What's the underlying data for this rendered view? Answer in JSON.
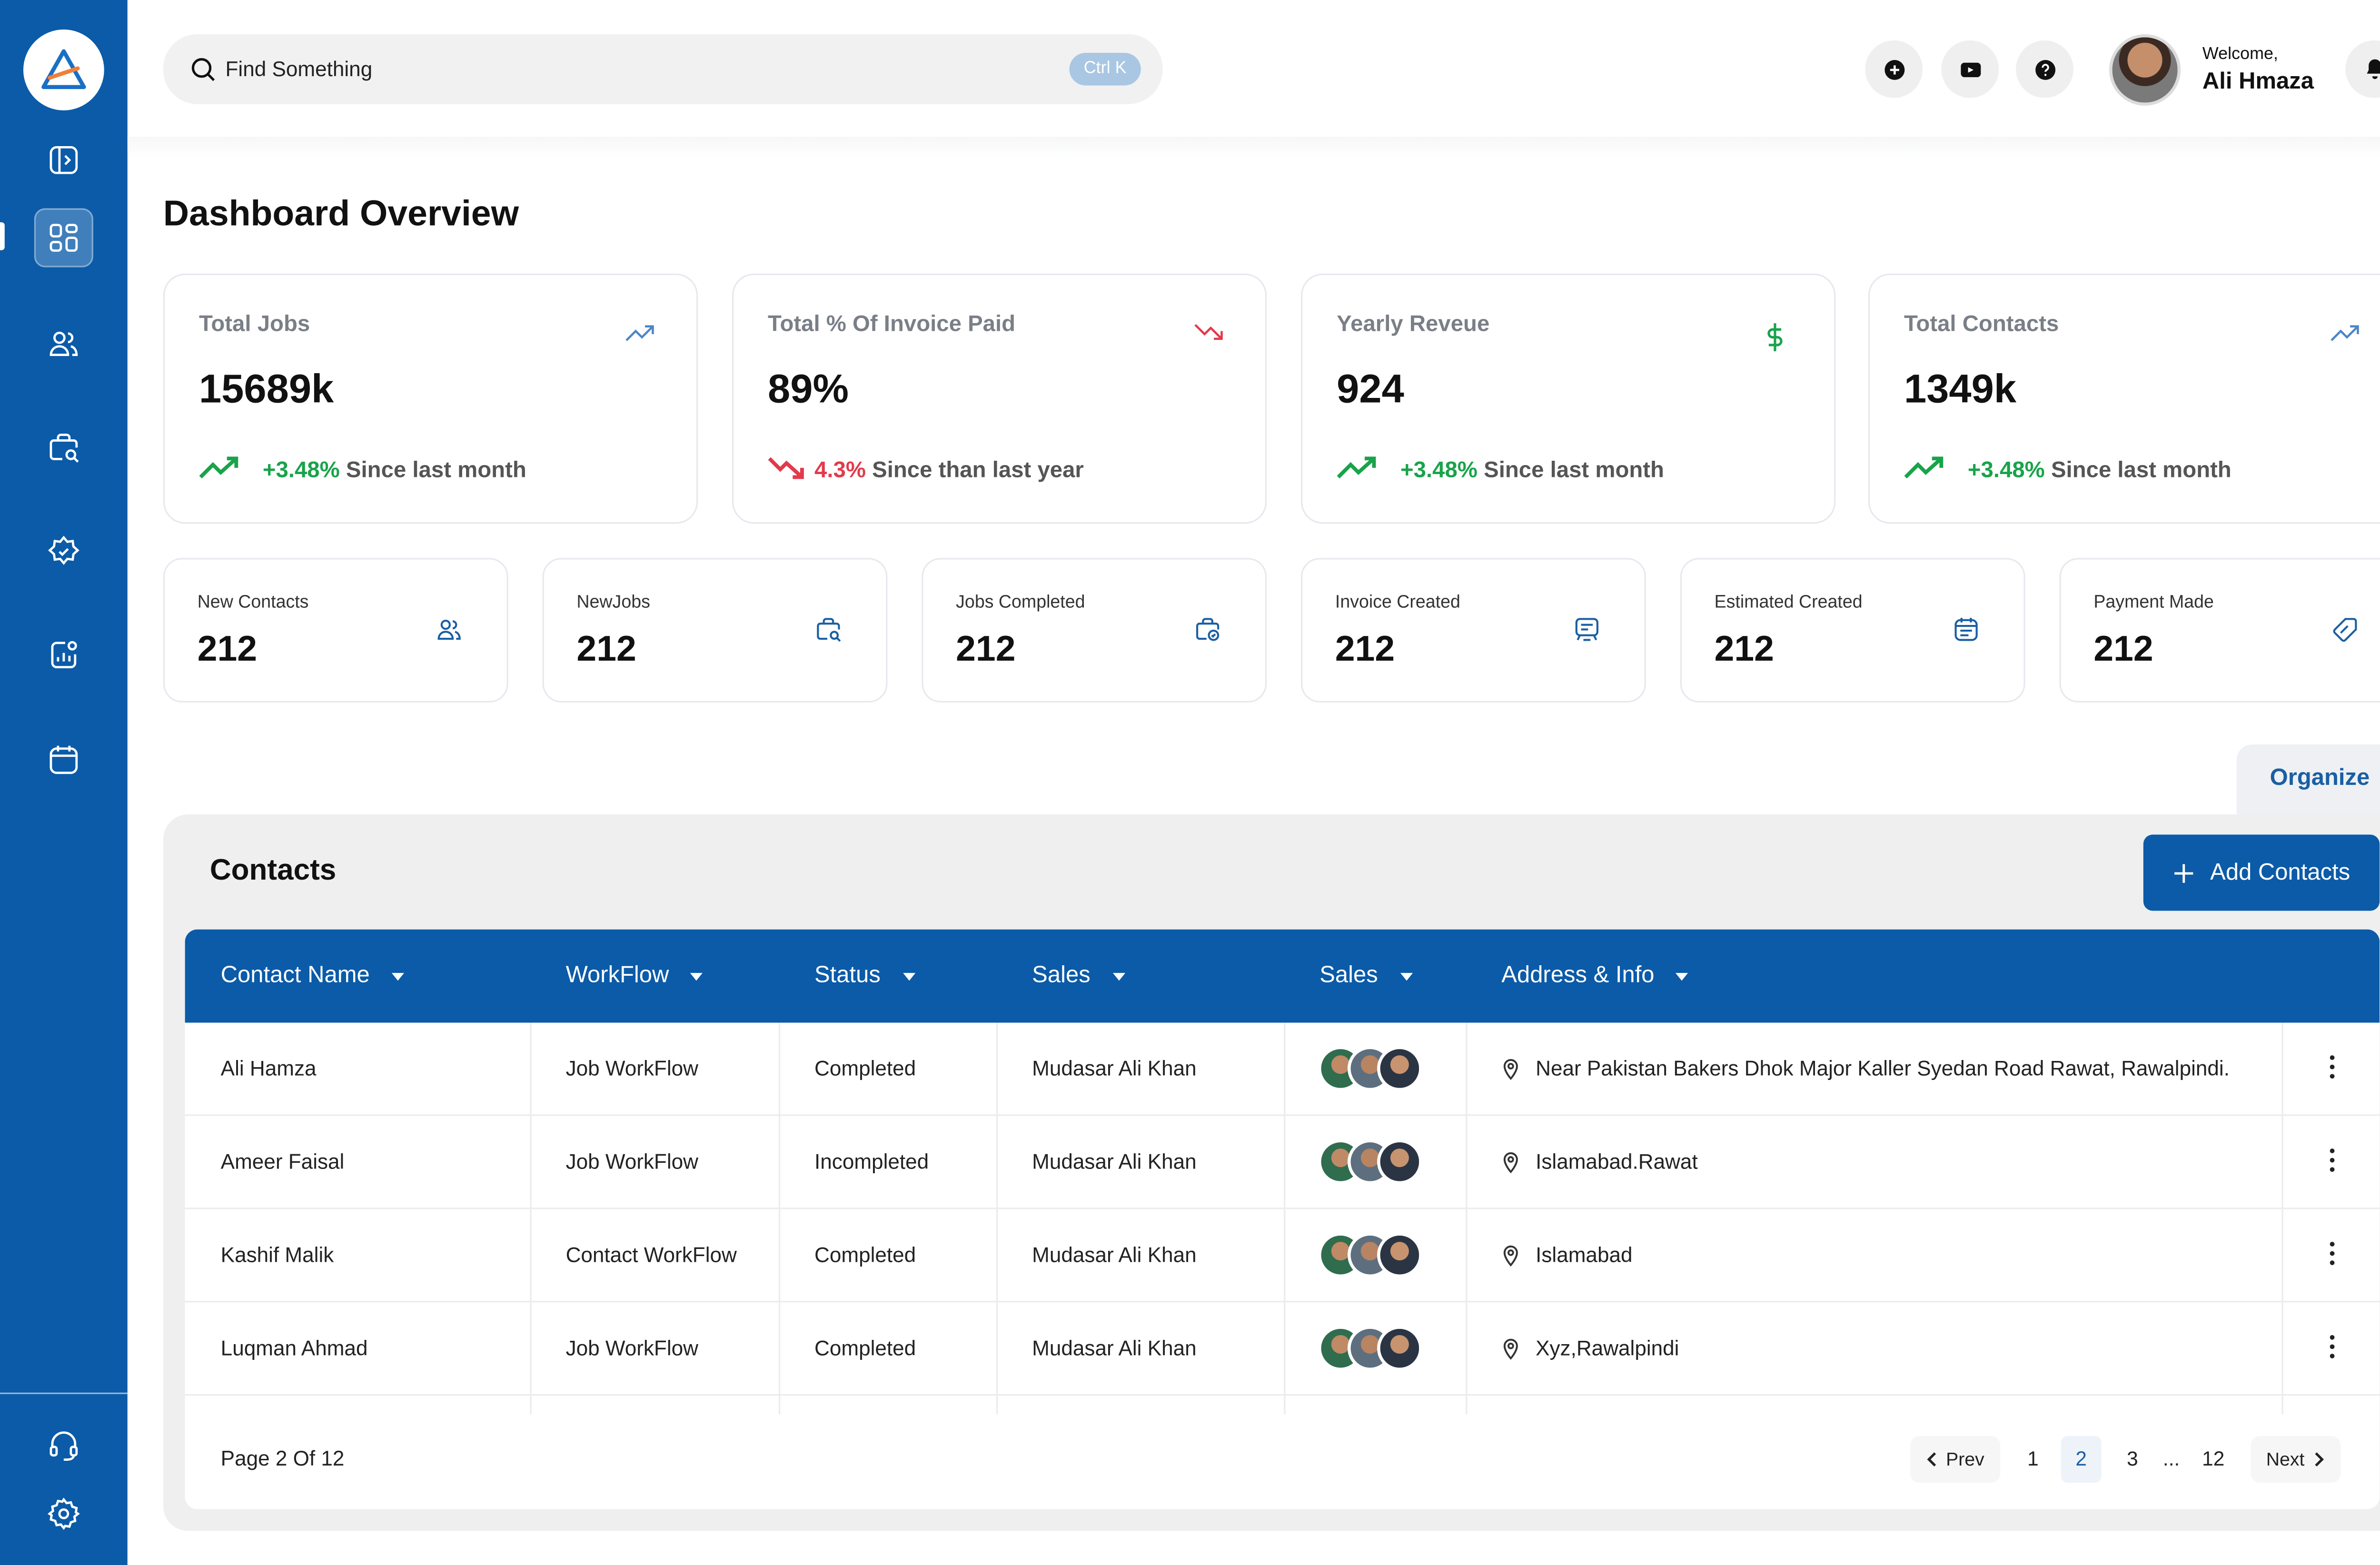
{
  "search": {
    "placeholder": "Find Something",
    "shortcut": "Ctrl K"
  },
  "user": {
    "welcome": "Welcome,",
    "name": "Ali Hmaza"
  },
  "page": {
    "title": "Dashboard Overview"
  },
  "stats": [
    {
      "label": "Total Jobs",
      "value": "15689k",
      "pct": "+3.48%",
      "footer": " Since last month",
      "trend": "up"
    },
    {
      "label": "Total % Of Invoice Paid",
      "value": "89%",
      "pct": "4.3%",
      "footer": " Since than last year",
      "trend": "down"
    },
    {
      "label": "Yearly Reveue",
      "value": "924",
      "pct": "+3.48%",
      "footer": " Since last month",
      "trend": "up"
    },
    {
      "label": "Total Contacts",
      "value": "1349k",
      "pct": "+3.48%",
      "footer": " Since last month",
      "trend": "up"
    }
  ],
  "mini": [
    {
      "label": "New Contacts",
      "value": "212",
      "icon": "users-icon"
    },
    {
      "label": "NewJobs",
      "value": "212",
      "icon": "briefcase-search-icon"
    },
    {
      "label": "Jobs Completed",
      "value": "212",
      "icon": "briefcase-check-icon"
    },
    {
      "label": "Invoice Created",
      "value": "212",
      "icon": "invoice-icon"
    },
    {
      "label": "Estimated Created",
      "value": "212",
      "icon": "calendar-icon"
    },
    {
      "label": "Payment Made",
      "value": "212",
      "icon": "tag-icon"
    }
  ],
  "contacts": {
    "organize": "Organize",
    "title": "Contacts",
    "add_label": "Add Contacts",
    "columns": [
      "Contact Name",
      "WorkFlow",
      "Status",
      "Sales",
      "Sales",
      "Address & Info"
    ],
    "rows": [
      {
        "name": "Ali Hamza",
        "workflow": "Job WorkFlow",
        "status": "Completed",
        "sales": "Mudasar Ali Khan",
        "address": "Near Pakistan Bakers Dhok Major Kaller Syedan Road Rawat, Rawalpindi."
      },
      {
        "name": "Ameer Faisal",
        "workflow": "Job WorkFlow",
        "status": "Incompleted",
        "sales": "Mudasar Ali Khan",
        "address": "Islamabad.Rawat"
      },
      {
        "name": "Kashif Malik",
        "workflow": "Contact WorkFlow",
        "status": "Completed",
        "sales": "Mudasar Ali Khan",
        "address": "Islamabad"
      },
      {
        "name": "Luqman Ahmad",
        "workflow": "Job WorkFlow",
        "status": "Completed",
        "sales": "Mudasar Ali Khan",
        "address": "Xyz,Rawalpindi"
      }
    ],
    "page_info": "Page 2 Of 12",
    "pagination": {
      "prev": "Prev",
      "next": "Next",
      "pages": [
        "1",
        "2",
        "3",
        "...",
        "12"
      ],
      "current": "2"
    }
  },
  "colors": {
    "primary": "#0b5ba8",
    "up": "#19a34a",
    "down": "#e23a4c"
  }
}
